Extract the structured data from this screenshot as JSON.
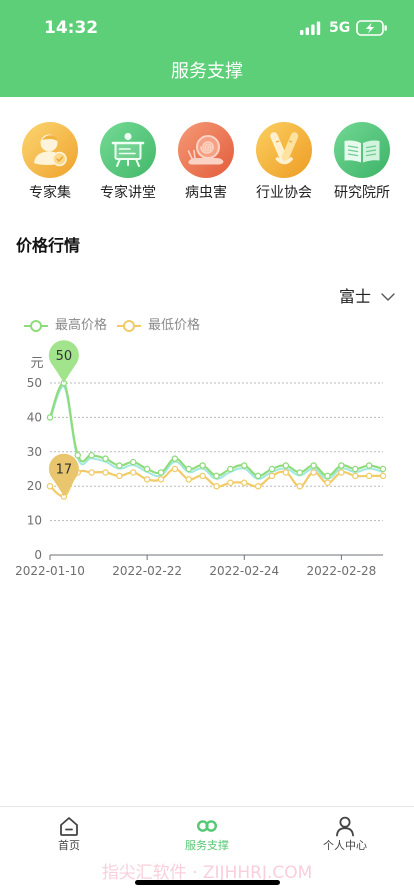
{
  "status_bar": {
    "time": "14:32",
    "network": "5G",
    "icons": [
      "signal-icon",
      "battery-charging-icon"
    ]
  },
  "header": {
    "title": "服务支撑"
  },
  "colors": {
    "brand": "#5dcf78",
    "active_tab": "#56c774",
    "tab_text": "#444444"
  },
  "shortcuts": [
    {
      "label": "专家集",
      "icon": "expert-icon",
      "color_from": "#fbd672",
      "color_to": "#efa22d"
    },
    {
      "label": "专家讲堂",
      "icon": "lecture-board-icon",
      "color_from": "#74da95",
      "color_to": "#43b86a"
    },
    {
      "label": "病虫害",
      "icon": "snail-icon",
      "color_from": "#f59a76",
      "color_to": "#e35c3c"
    },
    {
      "label": "行业协会",
      "icon": "handshake-icon",
      "color_from": "#fbcf60",
      "color_to": "#ee9c24"
    },
    {
      "label": "研究院所",
      "icon": "book-icon",
      "color_from": "#72d893",
      "color_to": "#3db368"
    }
  ],
  "price_section": {
    "title": "价格行情",
    "variety": "富士",
    "variety_icon": "chevron-down-icon"
  },
  "chart_data": {
    "type": "line",
    "smooth": true,
    "categories": [
      "2022-01-10",
      "",
      "",
      "",
      "",
      "",
      "",
      "2022-02-22",
      "",
      "",
      "",
      "",
      "",
      "",
      "2022-02-24",
      "",
      "",
      "",
      "",
      "",
      "",
      "2022-02-28",
      "",
      "",
      ""
    ],
    "ylabel": "元",
    "ylim": [
      0,
      50
    ],
    "yticks": [
      0,
      10,
      20,
      30,
      40,
      50
    ],
    "grid": true,
    "legend_position": "top-left",
    "series": [
      {
        "name": "最高价格",
        "color": "#8fdc7c",
        "shadow_color": "#84e0d6",
        "pin_color": "#a2e48b",
        "values": [
          40,
          50,
          29,
          29,
          28,
          26,
          27,
          25,
          24,
          28,
          25,
          26,
          23,
          25,
          26,
          23,
          25,
          26,
          24,
          26,
          23,
          26,
          25,
          26,
          25
        ]
      },
      {
        "name": "最低价格",
        "color": "#f0cb68",
        "pin_color": "#e9c66e",
        "values": [
          20,
          17,
          24,
          24,
          24,
          23,
          24,
          22,
          22,
          25,
          22,
          23,
          20,
          21,
          21,
          20,
          23,
          24,
          20,
          24,
          21,
          24,
          23,
          23,
          23
        ]
      }
    ],
    "mark_points": [
      {
        "series_index": 0,
        "index": 1,
        "value": 50
      },
      {
        "series_index": 1,
        "index": 1,
        "value": 17
      }
    ]
  },
  "tabbar": {
    "items": [
      {
        "label": "首页",
        "icon": "home-icon",
        "active": false
      },
      {
        "label": "服务支撑",
        "icon": "infinity-icon",
        "active": true
      },
      {
        "label": "个人中心",
        "icon": "user-icon",
        "active": false
      }
    ]
  },
  "watermark": "指尖汇软件 · ZIJHHRJ.COM"
}
